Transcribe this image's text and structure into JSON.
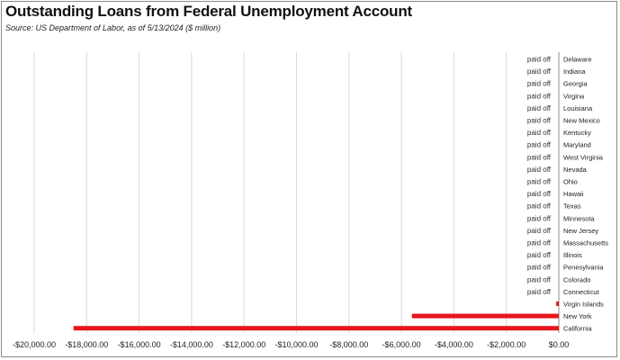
{
  "header": {
    "title": "Outstanding Loans from Federal Unemployment Account",
    "source": "Source:  US Department of Labor, as of 5/13/2024  ($ million)"
  },
  "colors": {
    "bar": "#e8161b",
    "grid": "#d9d9d9",
    "axis": "#8c8c8c",
    "text": "#222222",
    "paid_off_text": "#333333"
  },
  "chart_data": {
    "type": "bar",
    "orientation": "horizontal",
    "title": "Outstanding Loans from Federal Unemployment Account",
    "subtitle": "Source:  US Department of Labor, as of 5/13/2024  ($ million)",
    "categories": [
      "Delaware",
      "Indiana",
      "Georgia",
      "Virgina",
      "Louisiana",
      "New Mexico",
      "Kentucky",
      "Maryland",
      "West Virginia",
      "Nevada",
      "Ohio",
      "Hawaii",
      "Texas",
      "Minnesota",
      "New Jersey",
      "Massachusetts",
      "Illinois",
      "Penesylvania",
      "Colorado",
      "Connecticut",
      "Virgin Islands",
      "New York",
      "California"
    ],
    "values": [
      0,
      0,
      0,
      0,
      0,
      0,
      0,
      0,
      0,
      0,
      0,
      0,
      0,
      0,
      0,
      0,
      0,
      0,
      0,
      0,
      -100,
      -5600,
      -18500
    ],
    "data_labels": [
      "paid off",
      "paid off",
      "paid off",
      "paid off",
      "paid off",
      "paid off",
      "paid off",
      "paid off",
      "paid off",
      "paid off",
      "paid off",
      "paid off",
      "paid off",
      "paid off",
      "paid off",
      "paid off",
      "paid off",
      "paid off",
      "paid off",
      "paid off",
      "",
      "",
      ""
    ],
    "x_ticks": [
      -20000,
      -18000,
      -16000,
      -14000,
      -12000,
      -10000,
      -8000,
      -6000,
      -4000,
      -2000,
      0
    ],
    "x_tick_labels": [
      "-$20,000.00",
      "-$18,000.00",
      "-$16,000.00",
      "-$14,000.00",
      "-$12,000.00",
      "-$10,000.00",
      "-$8,000.00",
      "-$6,000.00",
      "-$4,000.00",
      "-$2,000.00",
      "$0.00"
    ],
    "xlim": [
      -20000,
      0
    ],
    "xlabel": "",
    "ylabel": "",
    "grid": true,
    "legend": "none"
  }
}
